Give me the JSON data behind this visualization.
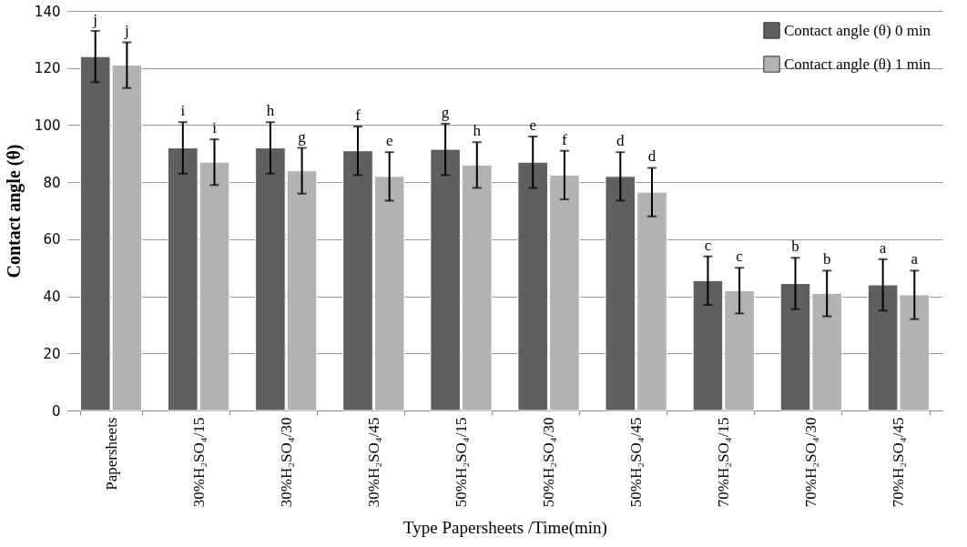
{
  "chart_data": {
    "type": "bar",
    "xlabel": "Type Papersheets /Time(min)",
    "ylabel": "Contact angle (θ)",
    "categories": [
      "Papersheets",
      "30%H₂SO₄/15",
      "30%H₂SO₄/30",
      "30%H₂SO₄/45",
      "50%H₂SO₄/15",
      "50%H₂SO₄/30",
      "50%H₂SO₄/45",
      "70%H₂SO₄/15",
      "70%H₂SO₄/30",
      "70%H₂SO₄/45"
    ],
    "series": [
      {
        "name": "Contact angle (θ) 0 min",
        "color": "#5f5f5f",
        "values": [
          124,
          92,
          92,
          91,
          91.5,
          87,
          82,
          45.5,
          44.5,
          44
        ],
        "errors": [
          9,
          9,
          9,
          8.5,
          9,
          9,
          8.5,
          8.5,
          9,
          9
        ],
        "value_labels": [
          "j",
          "i",
          "h",
          "f",
          "g",
          "e",
          "d",
          "c",
          "b",
          "a"
        ]
      },
      {
        "name": "Contact angle (θ) 1 min",
        "color": "#b2b2b2",
        "values": [
          121,
          87,
          84,
          82,
          86,
          82.5,
          76.5,
          42,
          41,
          40.5
        ],
        "errors": [
          8,
          8,
          8,
          8.5,
          8,
          8.5,
          8.5,
          8,
          8,
          8.5
        ],
        "value_labels": [
          "j",
          "i",
          "g",
          "e",
          "h",
          "f",
          "d",
          "c",
          "b",
          "a"
        ]
      }
    ],
    "ylim": [
      0,
      140
    ],
    "yticks": [
      0,
      20,
      40,
      60,
      80,
      100,
      120,
      140
    ],
    "grid": "y",
    "legend": "top right"
  }
}
